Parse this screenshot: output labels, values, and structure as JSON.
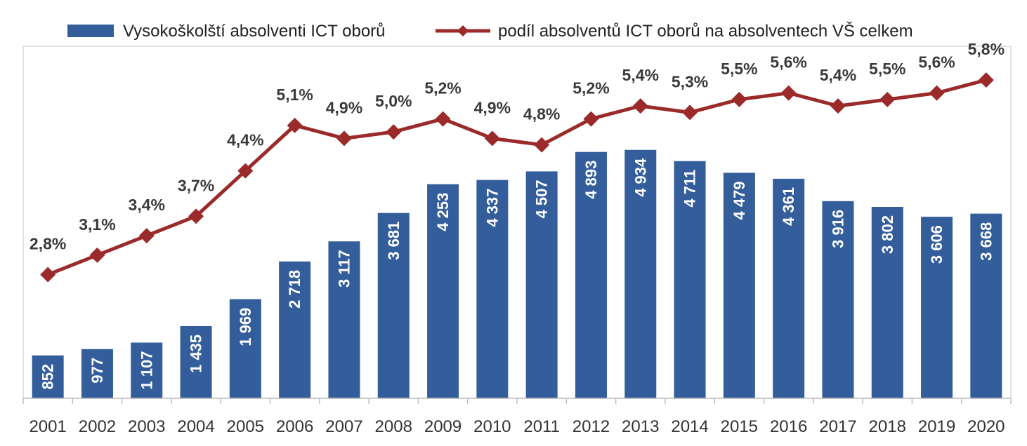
{
  "chart_data": {
    "type": "bar",
    "title": "",
    "xlabel": "",
    "ylabel": "",
    "categories": [
      "2001",
      "2002",
      "2003",
      "2004",
      "2005",
      "2006",
      "2007",
      "2008",
      "2009",
      "2010",
      "2011",
      "2012",
      "2013",
      "2014",
      "2015",
      "2016",
      "2017",
      "2018",
      "2019",
      "2020"
    ],
    "series": [
      {
        "name": "Vysokoškolští absolventi ICT oborů",
        "type": "bar",
        "color": "#345e9b",
        "values": [
          852,
          977,
          1107,
          1435,
          1969,
          2718,
          3117,
          3681,
          4253,
          4337,
          4507,
          4893,
          4934,
          4711,
          4479,
          4361,
          3916,
          3802,
          3606,
          3668
        ],
        "labels": [
          "852",
          "977",
          "1 107",
          "1 435",
          "1 969",
          "2 718",
          "3 117",
          "3 681",
          "4 253",
          "4 337",
          "4 507",
          "4 893",
          "4 934",
          "4 711",
          "4 479",
          "4 361",
          "3 916",
          "3 802",
          "3 606",
          "3 668"
        ],
        "ylim": [
          0,
          6500
        ]
      },
      {
        "name": "podíl absolventů ICT oborů na absolventech VŠ celkem",
        "type": "line",
        "color": "#9b2a2a",
        "marker": "diamond",
        "values": [
          2.8,
          3.1,
          3.4,
          3.7,
          4.4,
          5.1,
          4.9,
          5.0,
          5.2,
          4.9,
          4.8,
          5.2,
          5.4,
          5.3,
          5.5,
          5.6,
          5.4,
          5.5,
          5.6,
          5.8
        ],
        "labels": [
          "2,8%",
          "3,1%",
          "3,4%",
          "3,7%",
          "4,4%",
          "5,1%",
          "4,9%",
          "5,0%",
          "5,2%",
          "4,9%",
          "4,8%",
          "5,2%",
          "5,4%",
          "5,3%",
          "5,5%",
          "5,6%",
          "5,4%",
          "5,5%",
          "5,6%",
          "5,8%"
        ],
        "ylim": [
          0,
          6.2
        ]
      }
    ],
    "legend": "top",
    "grid": false
  }
}
